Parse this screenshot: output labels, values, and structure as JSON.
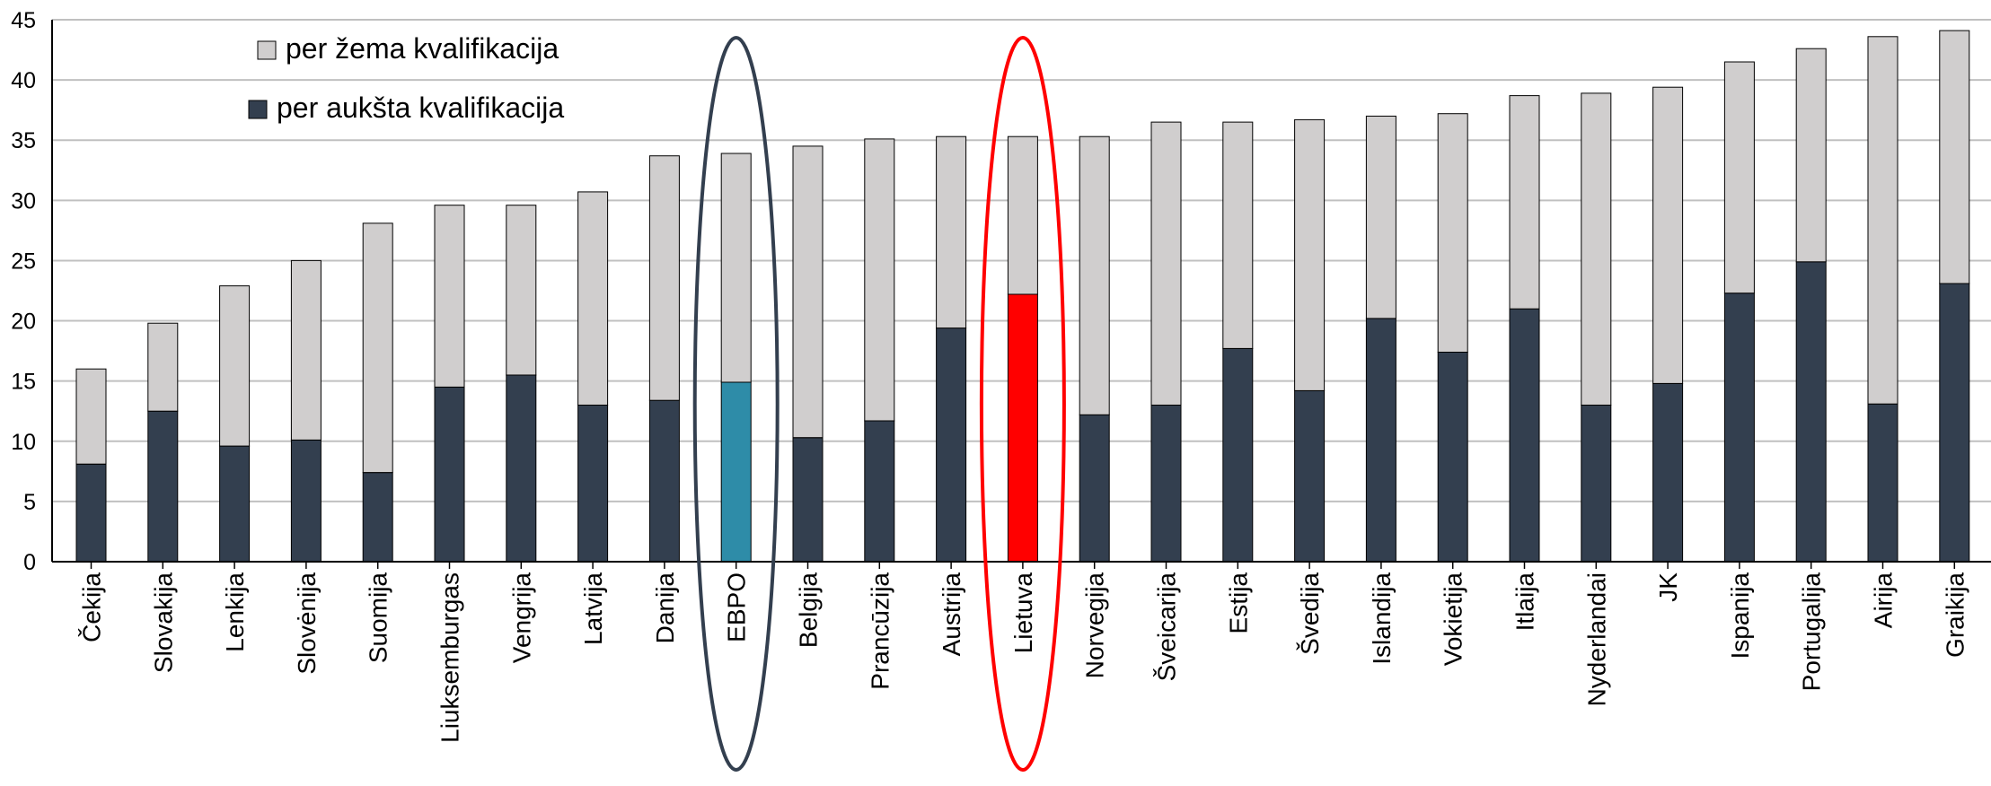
{
  "chart_data": {
    "type": "bar",
    "stacked": true,
    "title": "",
    "xlabel": "",
    "ylabel": "",
    "ylim": [
      0,
      45
    ],
    "yticks": [
      0,
      5,
      10,
      15,
      20,
      25,
      30,
      35,
      40,
      45
    ],
    "grid": "horizontal",
    "legend_position": "top-left",
    "categories": [
      "Čekija",
      "Slovakija",
      "Lenkija",
      "Slovėnija",
      "Suomija",
      "Liuksemburgas",
      "Vengrija",
      "Latvija",
      "Danija",
      "EBPO",
      "Belgija",
      "Prancūzija",
      "Austrija",
      "Lietuva",
      "Norvegija",
      "Šveicarija",
      "Estija",
      "Švedija",
      "Islandija",
      "Vokietija",
      "Itlaija",
      "Nyderlandai",
      "JK",
      "Ispanija",
      "Portugalija",
      "Airija",
      "Graikija"
    ],
    "series": [
      {
        "name": "per aukšta kvalifikacija",
        "color": "#333f4f",
        "values": [
          8.1,
          12.5,
          9.6,
          10.1,
          7.4,
          14.5,
          15.5,
          13.0,
          13.4,
          14.9,
          10.3,
          11.7,
          19.4,
          22.2,
          12.2,
          13.0,
          17.7,
          14.2,
          20.2,
          17.4,
          21.0,
          13.0,
          14.8,
          22.3,
          24.9,
          13.1,
          23.1
        ]
      },
      {
        "name": "per žema kvalifikacija",
        "color": "#d0cece",
        "values": [
          7.9,
          7.3,
          13.3,
          14.9,
          20.7,
          15.1,
          14.1,
          17.7,
          20.3,
          19.0,
          24.2,
          23.4,
          15.9,
          13.1,
          23.1,
          23.5,
          18.8,
          22.5,
          16.8,
          19.8,
          17.7,
          25.9,
          24.6,
          19.2,
          17.7,
          30.5,
          21.0
        ]
      }
    ],
    "highlights": [
      {
        "category": "EBPO",
        "color": "#2e8ca8",
        "ellipse_color": "#333f4f"
      },
      {
        "category": "Lietuva",
        "color": "#ff0000",
        "ellipse_color": "#ff0000"
      }
    ]
  }
}
